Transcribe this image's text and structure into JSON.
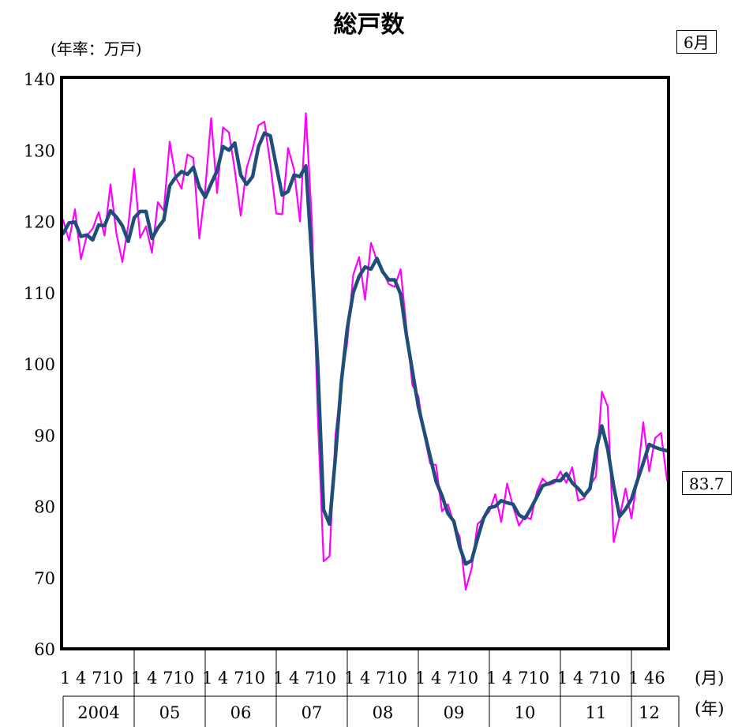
{
  "chart_data": {
    "type": "line",
    "title": "総戸数",
    "ylabel": "(年率：万戸)",
    "ylim": [
      60,
      140
    ],
    "yticks": [
      "60",
      "70",
      "80",
      "90",
      "100",
      "110",
      "120",
      "130",
      "140"
    ],
    "month_tick_text": "1 4 710",
    "last_month_tick_text": "1 46",
    "month_axis_label": "(月)",
    "year_axis_label": "(年)",
    "year_labels": [
      "2004",
      "05",
      "06",
      "07",
      "08",
      "09",
      "10",
      "11",
      "12"
    ],
    "latest_month_label": "6月",
    "latest_value_label": "83.7",
    "series": [
      {
        "style": "monthly",
        "color": "#ff00ff",
        "values": [
          120.2,
          117.3,
          121.7,
          114.7,
          118.0,
          119.0,
          121.3,
          118.0,
          125.2,
          118.3,
          114.3,
          119.4,
          127.4,
          117.7,
          119.3,
          115.6,
          122.7,
          121.5,
          131.2,
          126.2,
          124.6,
          129.4,
          128.9,
          117.6,
          124.5,
          134.5,
          124.0,
          133.2,
          132.5,
          127.2,
          120.8,
          127.5,
          130.2,
          133.5,
          134.0,
          128.0,
          121.1,
          121.0,
          130.3,
          127.3,
          120.0,
          135.2,
          120.3,
          93.0,
          72.3,
          73.0,
          90.0,
          97.5,
          103.0,
          112.5,
          115.0,
          109.0,
          117.0,
          114.5,
          113.0,
          111.2,
          110.8,
          113.3,
          105.0,
          97.0,
          95.5,
          90.0,
          86.0,
          85.8,
          79.3,
          80.3,
          77.5,
          75.7,
          68.3,
          71.3,
          77.5,
          78.3,
          79.3,
          81.7,
          77.8,
          83.2,
          80.0,
          77.3,
          78.6,
          78.2,
          82.0,
          83.9,
          83.0,
          83.3,
          84.9,
          83.3,
          85.5,
          80.8,
          81.1,
          82.9,
          84.2,
          96.1,
          94.0,
          75.0,
          78.5,
          82.5,
          78.3,
          84.0,
          91.8,
          84.9,
          89.6,
          90.3,
          83.7
        ],
        "latest_value": 83.7
      },
      {
        "style": "trend",
        "color": "#1f4e79",
        "values": [
          118.3,
          119.8,
          119.9,
          117.9,
          118.1,
          117.4,
          119.5,
          119.4,
          121.5,
          120.6,
          119.4,
          117.2,
          120.5,
          121.4,
          121.4,
          117.6,
          119.1,
          120.2,
          125.0,
          126.2,
          127.0,
          126.6,
          127.6,
          124.8,
          123.4,
          125.3,
          127.1,
          130.5,
          130.0,
          131.0,
          126.5,
          125.2,
          126.3,
          130.5,
          132.4,
          132.0,
          127.8,
          123.7,
          124.2,
          126.5,
          126.3,
          127.8,
          115.0,
          100.0,
          79.5,
          77.5,
          87.0,
          97.5,
          105.0,
          110.0,
          112.3,
          113.6,
          113.3,
          114.8,
          112.9,
          111.8,
          111.8,
          109.8,
          104.0,
          99.0,
          94.0,
          90.5,
          87.0,
          83.5,
          81.5,
          79.0,
          77.9,
          74.3,
          71.9,
          72.4,
          75.5,
          78.3,
          79.8,
          80.0,
          80.8,
          80.5,
          80.3,
          78.8,
          78.3,
          79.7,
          81.3,
          82.9,
          83.2,
          83.6,
          83.6,
          84.6,
          83.3,
          82.5,
          81.5,
          82.5,
          87.8,
          91.3,
          88.0,
          82.8,
          78.6,
          79.6,
          81.0,
          83.6,
          86.1,
          88.7,
          88.3,
          88.0,
          87.8
        ]
      }
    ]
  }
}
